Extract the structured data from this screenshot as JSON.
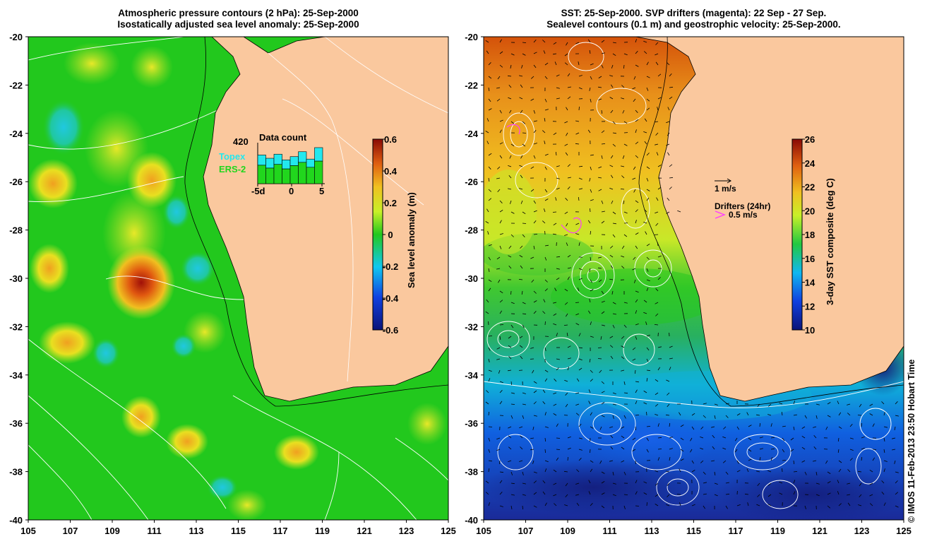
{
  "left_panel": {
    "title_line1": "Atmospheric pressure contours (2 hPa): 25-Sep-2000",
    "title_line2": "Isostatically adjusted sea level anomaly: 25-Sep-2000",
    "y_ticks": [
      "-20",
      "-22",
      "-24",
      "-26",
      "-28",
      "-30",
      "-32",
      "-34",
      "-36",
      "-38",
      "-40"
    ],
    "x_ticks": [
      "105",
      "107",
      "109",
      "111",
      "113",
      "115",
      "117",
      "119",
      "121",
      "123",
      "125"
    ],
    "colorbar": {
      "label": "Sea level anomaly (m)",
      "ticks": [
        "0.6",
        "0.4",
        "0.2",
        "0",
        "-0.2",
        "-0.4",
        "-0.6"
      ],
      "range": [
        -0.6,
        0.6
      ]
    },
    "data_count": {
      "title": "Data count",
      "max_label": "420",
      "series": [
        {
          "name": "Topex",
          "color": "#22e8ee"
        },
        {
          "name": "ERS-2",
          "color": "#21d61d"
        }
      ],
      "x_ticks": [
        "-5d",
        "0",
        "5"
      ]
    }
  },
  "right_panel": {
    "title_line1": "SST: 25-Sep-2000. SVP drifters (magenta): 22 Sep - 27 Sep.",
    "title_line2": "Sealevel contours (0.1 m) and geostrophic velocity: 25-Sep-2000.",
    "y_ticks": [
      "-20",
      "-22",
      "-24",
      "-26",
      "-28",
      "-30",
      "-32",
      "-34",
      "-36",
      "-38",
      "-40"
    ],
    "x_ticks": [
      "105",
      "107",
      "109",
      "111",
      "113",
      "115",
      "117",
      "119",
      "121",
      "123",
      "125"
    ],
    "colorbar": {
      "label": "3-day SST composite (deg C)",
      "ticks": [
        "26",
        "24",
        "22",
        "20",
        "18",
        "16",
        "14",
        "12",
        "10"
      ],
      "range": [
        10,
        26
      ]
    },
    "velocity_key": "1 m/s",
    "drifter_key_title": "Drifters (24hr)",
    "drifter_key_speed": "0.5 m/s"
  },
  "credit": "© IMOS 11-Feb-2013 23:50 Hobart Time",
  "colors": {
    "land": "#fac89e",
    "sla_base": "#22c81d",
    "sla_high": "#a81508",
    "sst_warm": "#d4520a",
    "sst_cold": "#1e3ca8",
    "contour": "#ffffff",
    "drifter": "#ff3cff"
  }
}
